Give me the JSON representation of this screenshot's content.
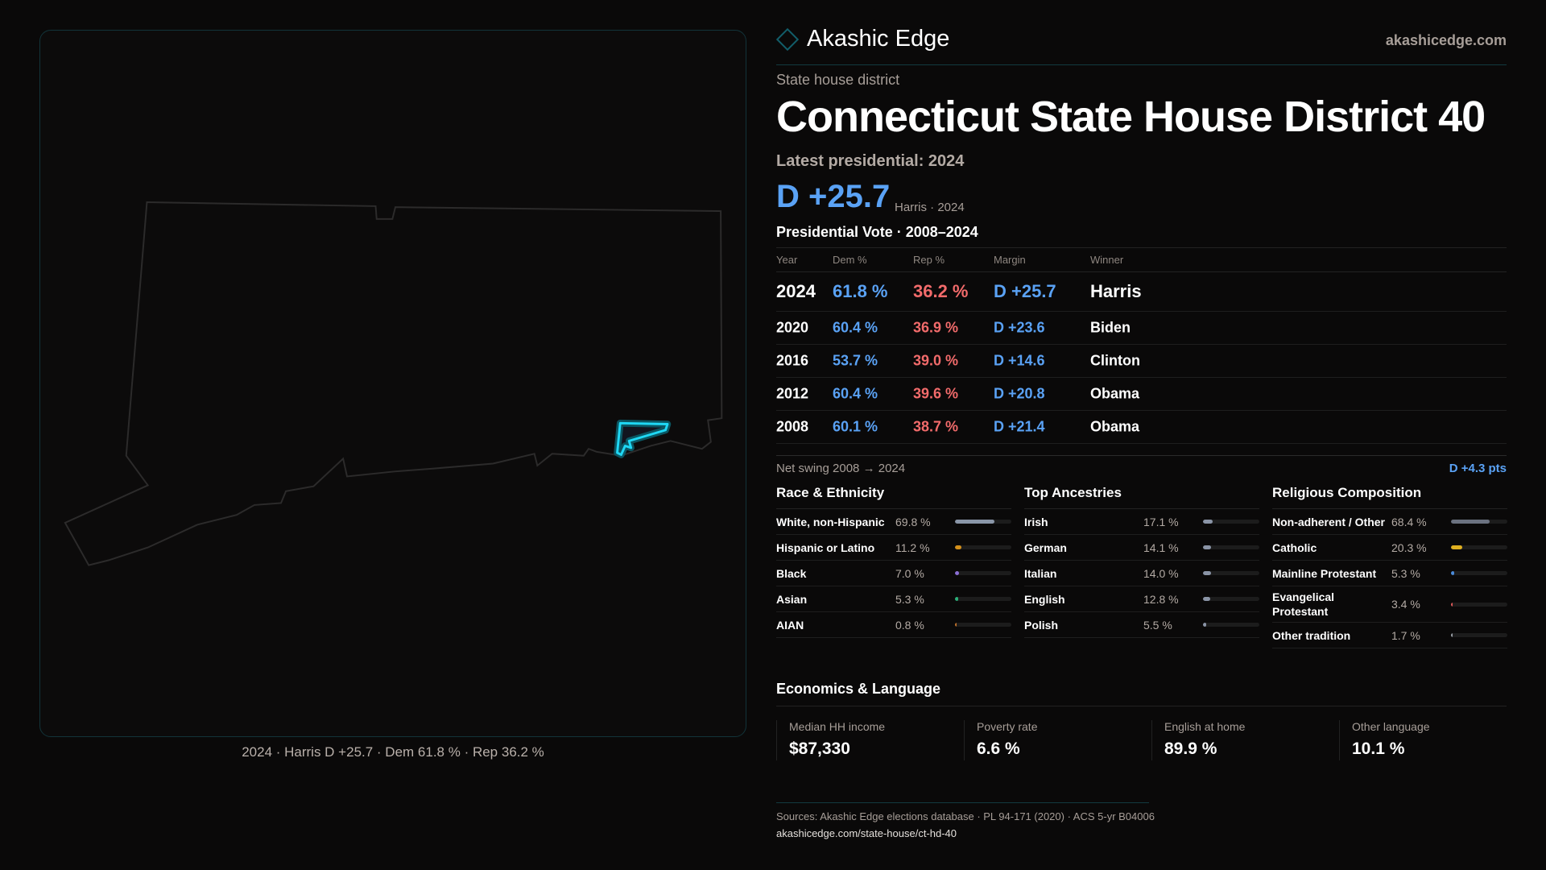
{
  "brand": {
    "name": "Akashic Edge",
    "site": "akashicedge.com"
  },
  "header": {
    "kicker": "State house district",
    "title": "Connecticut State House District 40",
    "latest": "Latest presidential: 2024",
    "margin": "D +25.7",
    "margin_sub": "Harris · 2024"
  },
  "colors": {
    "dem": "#5aa2f5",
    "rep": "#f26b6b",
    "accent": "#19d3f0"
  },
  "map": {
    "caption": "2024 · Harris D +25.7 · Dem 61.8 % · Rep 36.2 %"
  },
  "votes": {
    "title": "Presidential Vote · 2008–2024",
    "headers": [
      "Year",
      "Dem %",
      "Rep %",
      "Margin",
      "Winner"
    ],
    "rows": [
      {
        "year": "2024",
        "dem": "61.8 %",
        "rep": "36.2 %",
        "margin": "D +25.7",
        "winner": "Harris"
      },
      {
        "year": "2020",
        "dem": "60.4 %",
        "rep": "36.9 %",
        "margin": "D +23.6",
        "winner": "Biden"
      },
      {
        "year": "2016",
        "dem": "53.7 %",
        "rep": "39.0 %",
        "margin": "D +14.6",
        "winner": "Clinton"
      },
      {
        "year": "2012",
        "dem": "60.4 %",
        "rep": "39.6 %",
        "margin": "D +20.8",
        "winner": "Obama"
      },
      {
        "year": "2008",
        "dem": "60.1 %",
        "rep": "38.7 %",
        "margin": "D +21.4",
        "winner": "Obama"
      }
    ],
    "swing_label": "Net swing 2008 → 2024",
    "swing_value": "D +4.3 pts"
  },
  "demographics": [
    {
      "title": "Race & Ethnicity",
      "items": [
        {
          "label": "White, non-Hispanic",
          "value": "69.8 %",
          "pct": 69.8,
          "color": "#8a96a8"
        },
        {
          "label": "Hispanic or Latino",
          "value": "11.2 %",
          "pct": 11.2,
          "color": "#d4901a"
        },
        {
          "label": "Black",
          "value": "7.0 %",
          "pct": 7.0,
          "color": "#8b6fd6"
        },
        {
          "label": "Asian",
          "value": "5.3 %",
          "pct": 5.3,
          "color": "#2bb07a"
        },
        {
          "label": "AIAN",
          "value": "0.8 %",
          "pct": 0.8,
          "color": "#c0702a"
        }
      ]
    },
    {
      "title": "Top Ancestries",
      "items": [
        {
          "label": "Irish",
          "value": "17.1 %",
          "pct": 17.1,
          "color": "#8a94a6"
        },
        {
          "label": "German",
          "value": "14.1 %",
          "pct": 14.1,
          "color": "#8a94a6"
        },
        {
          "label": "Italian",
          "value": "14.0 %",
          "pct": 14.0,
          "color": "#8a94a6"
        },
        {
          "label": "English",
          "value": "12.8 %",
          "pct": 12.8,
          "color": "#8a94a6"
        },
        {
          "label": "Polish",
          "value": "5.5 %",
          "pct": 5.5,
          "color": "#8a94a6"
        }
      ]
    },
    {
      "title": "Religious Composition",
      "items": [
        {
          "label": "Non-adherent / Other",
          "value": "68.4 %",
          "pct": 68.4,
          "color": "#6b7280"
        },
        {
          "label": "Catholic",
          "value": "20.3 %",
          "pct": 20.3,
          "color": "#e0b020"
        },
        {
          "label": "Mainline Protestant",
          "value": "5.3 %",
          "pct": 5.3,
          "color": "#4a8ad8"
        },
        {
          "label": "Evangelical Protestant",
          "value": "3.4 %",
          "pct": 3.4,
          "color": "#e05a5a"
        },
        {
          "label": "Other tradition",
          "value": "1.7 %",
          "pct": 1.7,
          "color": "#9aa0a8"
        }
      ]
    }
  ],
  "economics": {
    "title": "Economics & Language",
    "cards": [
      {
        "label": "Median HH income",
        "value": "$87,330"
      },
      {
        "label": "Poverty rate",
        "value": "6.6 %"
      },
      {
        "label": "English at home",
        "value": "89.9 %"
      },
      {
        "label": "Other language",
        "value": "10.1 %"
      }
    ]
  },
  "footer": {
    "sources": "Sources: Akashic Edge elections database · PL 94-171 (2020) · ACS 5-yr B04006",
    "url": "akashicedge.com/state-house/ct-hd-40"
  }
}
